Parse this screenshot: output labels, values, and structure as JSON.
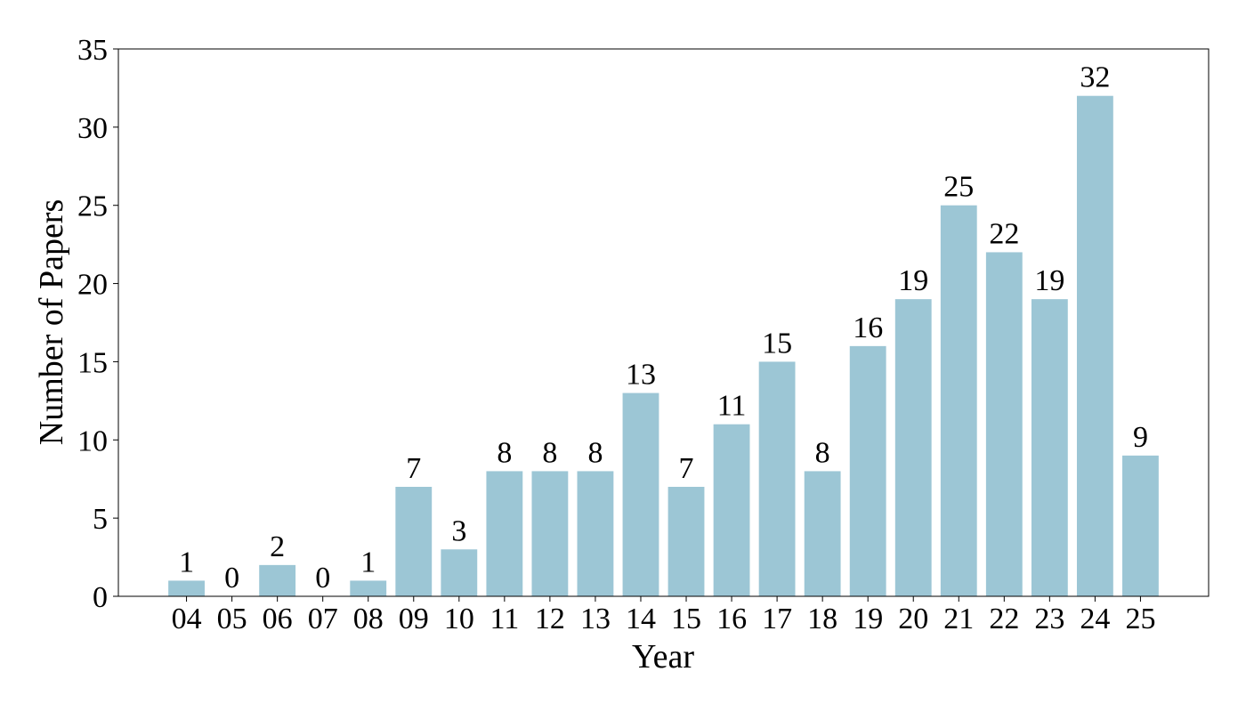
{
  "chart_data": {
    "type": "bar",
    "xlabel": "Year",
    "ylabel": "Number of Papers",
    "categories": [
      "04",
      "05",
      "06",
      "07",
      "08",
      "09",
      "10",
      "11",
      "12",
      "13",
      "14",
      "15",
      "16",
      "17",
      "18",
      "19",
      "20",
      "21",
      "22",
      "23",
      "24",
      "25"
    ],
    "values": [
      1,
      0,
      2,
      0,
      1,
      7,
      3,
      8,
      8,
      8,
      13,
      7,
      11,
      15,
      8,
      16,
      19,
      25,
      22,
      19,
      32,
      9
    ],
    "color": "#9cc6d5",
    "ylim": [
      0,
      35
    ],
    "yticks": [
      0,
      5,
      10,
      15,
      20,
      25,
      30,
      35
    ],
    "grid": false
  }
}
